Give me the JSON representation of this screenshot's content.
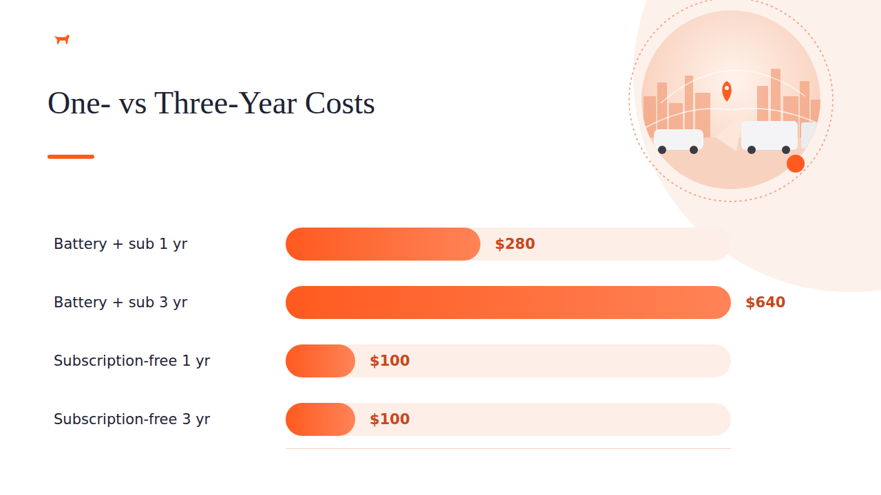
{
  "chart_data": {
    "type": "bar",
    "title": "One- vs Three-Year Costs",
    "orientation": "horizontal",
    "categories": [
      "Battery + sub 1 yr",
      "Battery + sub 3 yr",
      "Subscription-free 1 yr",
      "Subscription-free 3 yr"
    ],
    "values": [
      280,
      640,
      100,
      100
    ],
    "value_labels": [
      "$280",
      "$640",
      "$100",
      "$100"
    ],
    "data_labels": true,
    "color": "#ff5a1f",
    "xlim": [
      0,
      640
    ],
    "tick_labels": false,
    "grid": false
  }
}
